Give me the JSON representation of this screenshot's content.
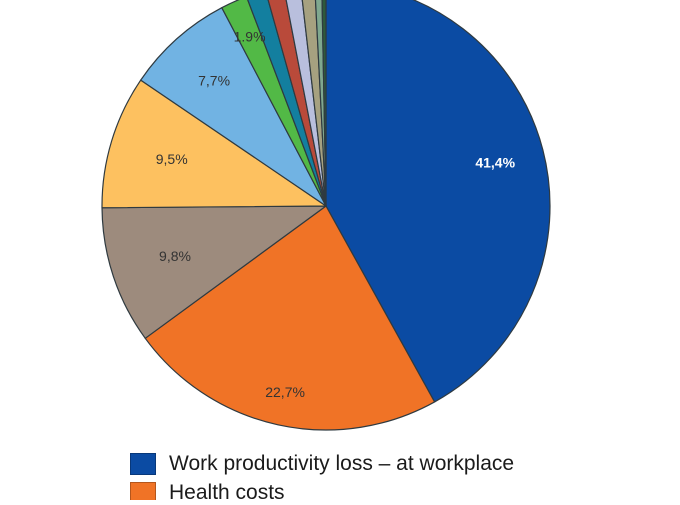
{
  "chart_data": {
    "type": "pie",
    "title": "",
    "slices": [
      {
        "label": "Work productivity loss – at workplace",
        "value": 41.4,
        "value_label": "41,4%",
        "color": "#0b4ba3",
        "label_color": "#ffffff",
        "label_bold": true
      },
      {
        "label": "Health costs",
        "value": 22.7,
        "value_label": "22,7%",
        "color": "#f07326",
        "label_color": "#333333",
        "label_bold": false
      },
      {
        "label": "",
        "value": 9.8,
        "value_label": "9,8%",
        "color": "#9d8b7d",
        "label_color": "#333333",
        "label_bold": false
      },
      {
        "label": "",
        "value": 9.5,
        "value_label": "9,5%",
        "color": "#fdc160",
        "label_color": "#333333",
        "label_bold": false
      },
      {
        "label": "",
        "value": 7.7,
        "value_label": "7,7%",
        "color": "#71b3e3",
        "label_color": "#333333",
        "label_bold": false
      },
      {
        "label": "",
        "value": 1.9,
        "value_label": "1.9%",
        "color": "#52b946",
        "label_color": "#333333",
        "label_bold": false
      },
      {
        "label": "",
        "value": 1.4,
        "value_label": "",
        "color": "#137f9f",
        "label_color": "#333333",
        "label_bold": false
      },
      {
        "label": "",
        "value": 1.3,
        "value_label": "",
        "color": "#b94a3a",
        "label_color": "#333333",
        "label_bold": false
      },
      {
        "label": "",
        "value": 1.2,
        "value_label": "",
        "color": "#b9bfdd",
        "label_color": "#333333",
        "label_bold": false
      },
      {
        "label": "",
        "value": 1.0,
        "value_label": "",
        "color": "#a6a180",
        "label_color": "#333333",
        "label_bold": false
      },
      {
        "label": "",
        "value": 0.5,
        "value_label": "",
        "color": "#7fa88f",
        "label_color": "#333333",
        "label_bold": false
      },
      {
        "label": "",
        "value": 0.3,
        "value_label": "",
        "color": "#2d5a3c",
        "label_color": "#333333",
        "label_bold": false
      }
    ],
    "legend": {
      "placement": "bottom-left",
      "entries": [
        {
          "label": "Work productivity loss – at workplace",
          "color": "#0b4ba3"
        },
        {
          "label": "Health costs",
          "color": "#f07326"
        }
      ]
    }
  }
}
